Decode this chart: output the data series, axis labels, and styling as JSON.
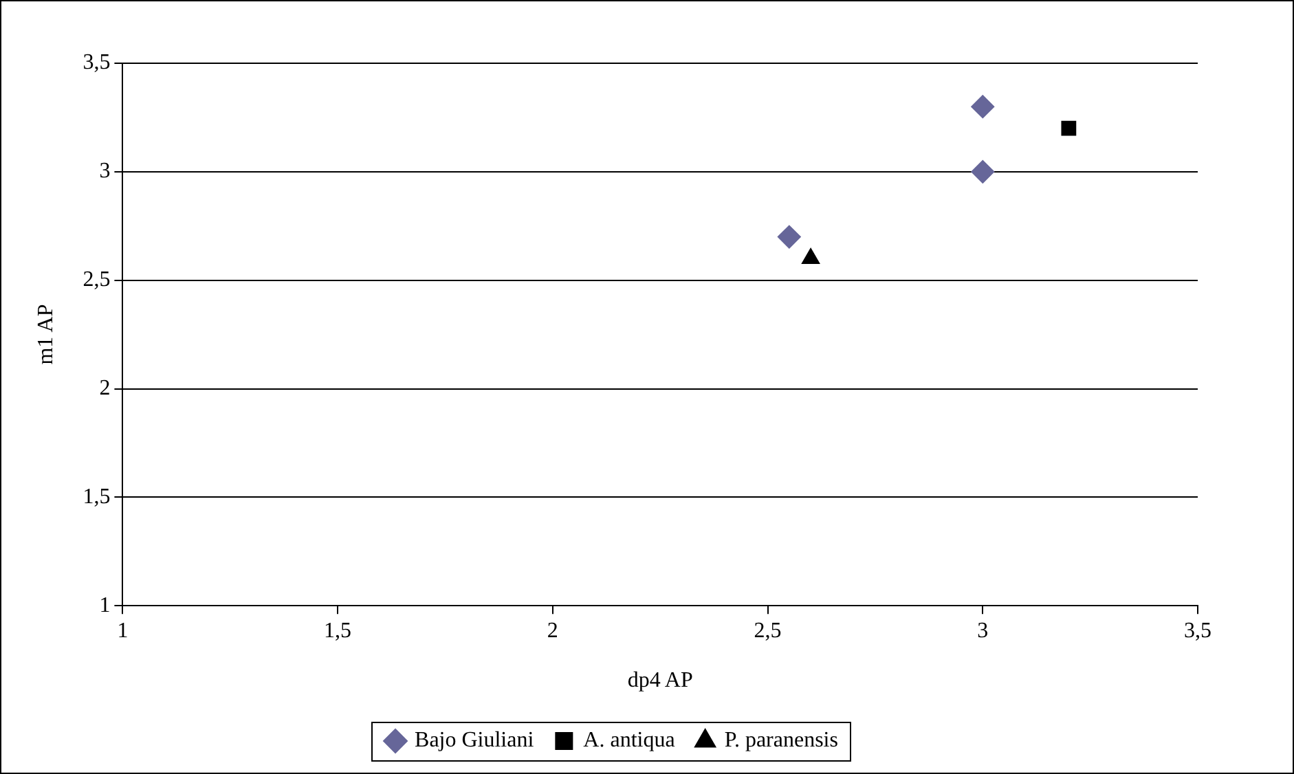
{
  "chart_data": {
    "type": "scatter",
    "xlabel": "dp4 AP",
    "ylabel": "m1 AP",
    "xlim": [
      1,
      3.5
    ],
    "ylim": [
      1,
      3.5
    ],
    "xticks": [
      1,
      {
        "value": 1.5,
        "label": "1,5"
      },
      2,
      {
        "value": 2.5,
        "label": "2,5"
      },
      3,
      {
        "value": 3.5,
        "label": "3,5"
      }
    ],
    "yticks": [
      1,
      {
        "value": 1.5,
        "label": "1,5"
      },
      2,
      {
        "value": 2.5,
        "label": "2,5"
      },
      3,
      {
        "value": 3.5,
        "label": "3,5"
      }
    ],
    "grid": "y",
    "legend": "bottom",
    "series": [
      {
        "name": "Bajo Giuliani",
        "color": "#666699",
        "marker": "diamond",
        "x": [
          2.55,
          3.0,
          3.0
        ],
        "values": [
          2.7,
          3.3,
          3.0
        ]
      },
      {
        "name": "A. antiqua",
        "color": "#000000",
        "marker": "square",
        "x": [
          3.2
        ],
        "values": [
          3.2
        ]
      },
      {
        "name": "P. paranensis",
        "color": "#000000",
        "marker": "triangle",
        "x": [
          2.6
        ],
        "values": [
          2.6
        ]
      }
    ]
  }
}
